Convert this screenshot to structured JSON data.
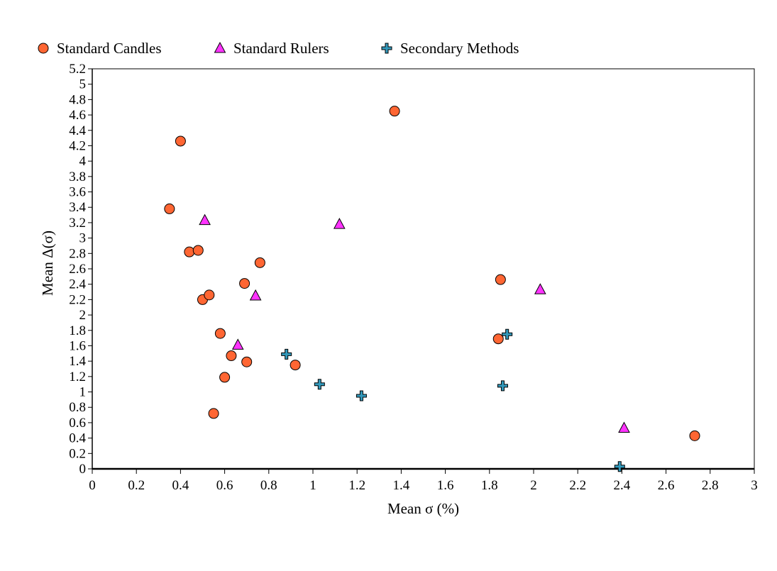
{
  "chart_data": {
    "type": "scatter",
    "title": "",
    "xlabel": "Mean σ (%)",
    "ylabel": "Mean Δ(σ)",
    "xlim": [
      0,
      3
    ],
    "ylim": [
      0,
      5.2
    ],
    "x_ticks": [
      {
        "value": 0,
        "label": "0"
      },
      {
        "value": 0.2,
        "label": "0.2"
      },
      {
        "value": 0.4,
        "label": "0.4"
      },
      {
        "value": 0.6,
        "label": "0.6"
      },
      {
        "value": 0.8,
        "label": "0.8"
      },
      {
        "value": 1,
        "label": "1"
      },
      {
        "value": 1.2,
        "label": "1.2"
      },
      {
        "value": 1.4,
        "label": "1.4"
      },
      {
        "value": 1.6,
        "label": "1.6"
      },
      {
        "value": 1.8,
        "label": "1.8"
      },
      {
        "value": 2,
        "label": "2"
      },
      {
        "value": 2.2,
        "label": "2.2"
      },
      {
        "value": 2.4,
        "label": "2.4"
      },
      {
        "value": 2.6,
        "label": "2.6"
      },
      {
        "value": 2.8,
        "label": "2.8"
      },
      {
        "value": 3,
        "label": "3"
      }
    ],
    "y_ticks": [
      {
        "value": 0,
        "label": "0"
      },
      {
        "value": 0.2,
        "label": "0.2"
      },
      {
        "value": 0.4,
        "label": "0.4"
      },
      {
        "value": 0.6,
        "label": "0.6"
      },
      {
        "value": 0.8,
        "label": "0.8"
      },
      {
        "value": 1,
        "label": "1"
      },
      {
        "value": 1.2,
        "label": "1.2"
      },
      {
        "value": 1.4,
        "label": "1.4"
      },
      {
        "value": 1.6,
        "label": "1.6"
      },
      {
        "value": 1.8,
        "label": "1.8"
      },
      {
        "value": 2,
        "label": "2"
      },
      {
        "value": 2.2,
        "label": "2.2"
      },
      {
        "value": 2.4,
        "label": "2.4"
      },
      {
        "value": 2.6,
        "label": "2.6"
      },
      {
        "value": 2.8,
        "label": "2.8"
      },
      {
        "value": 3,
        "label": "3"
      },
      {
        "value": 3.2,
        "label": "3.2"
      },
      {
        "value": 3.4,
        "label": "3.4"
      },
      {
        "value": 3.6,
        "label": "3.6"
      },
      {
        "value": 3.8,
        "label": "3.8"
      },
      {
        "value": 4,
        "label": "4"
      },
      {
        "value": 4.2,
        "label": "4.2"
      },
      {
        "value": 4.4,
        "label": "4.4"
      },
      {
        "value": 4.6,
        "label": "4.6"
      },
      {
        "value": 4.8,
        "label": "4.8"
      },
      {
        "value": 5,
        "label": "5"
      },
      {
        "value": 5.2,
        "label": "5.2"
      }
    ],
    "grid": false,
    "legend_position": "top",
    "series": [
      {
        "name": "Standard Candles",
        "marker": "circle",
        "color": "#FF6633",
        "points": [
          {
            "x": 0.35,
            "y": 3.38
          },
          {
            "x": 0.4,
            "y": 4.26
          },
          {
            "x": 0.44,
            "y": 2.82
          },
          {
            "x": 0.48,
            "y": 2.84
          },
          {
            "x": 0.5,
            "y": 2.2
          },
          {
            "x": 0.53,
            "y": 2.26
          },
          {
            "x": 0.55,
            "y": 0.72
          },
          {
            "x": 0.58,
            "y": 1.76
          },
          {
            "x": 0.6,
            "y": 1.19
          },
          {
            "x": 0.63,
            "y": 1.47
          },
          {
            "x": 0.69,
            "y": 2.41
          },
          {
            "x": 0.7,
            "y": 1.39
          },
          {
            "x": 0.76,
            "y": 2.68
          },
          {
            "x": 0.92,
            "y": 1.35
          },
          {
            "x": 1.37,
            "y": 4.65
          },
          {
            "x": 1.84,
            "y": 1.69
          },
          {
            "x": 1.85,
            "y": 2.46
          },
          {
            "x": 2.73,
            "y": 0.43
          }
        ]
      },
      {
        "name": "Standard Rulers",
        "marker": "triangle",
        "color": "#FF33FF",
        "points": [
          {
            "x": 0.51,
            "y": 3.23
          },
          {
            "x": 0.66,
            "y": 1.61
          },
          {
            "x": 0.74,
            "y": 2.25
          },
          {
            "x": 1.12,
            "y": 3.18
          },
          {
            "x": 2.03,
            "y": 2.33
          },
          {
            "x": 2.41,
            "y": 0.53
          }
        ]
      },
      {
        "name": "Secondary Methods",
        "marker": "cross",
        "color": "#3399BB",
        "points": [
          {
            "x": 0.88,
            "y": 1.49
          },
          {
            "x": 1.03,
            "y": 1.1
          },
          {
            "x": 1.22,
            "y": 0.95
          },
          {
            "x": 1.86,
            "y": 1.08
          },
          {
            "x": 1.88,
            "y": 1.75
          },
          {
            "x": 2.39,
            "y": 0.03
          }
        ]
      }
    ]
  }
}
